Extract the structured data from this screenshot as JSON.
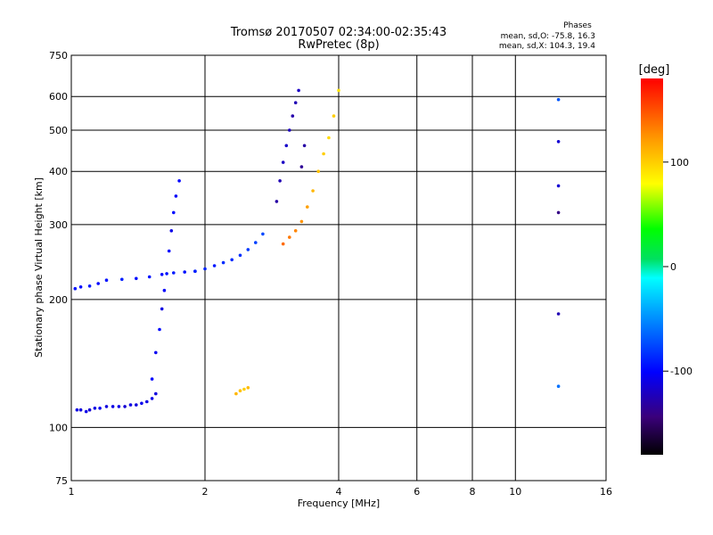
{
  "chart_data": {
    "type": "scatter",
    "title": "Tromsø 20170507 02:34:00-02:35:43",
    "subtitle": "RwPretec (8p)",
    "xlabel": "Frequency [MHz]",
    "ylabel": "Stationary phase Virtual Height [km]",
    "x_scale": "log",
    "y_scale": "log",
    "xlim": [
      1,
      16
    ],
    "ylim": [
      75,
      750
    ],
    "x_ticks": [
      1,
      2,
      4,
      6,
      8,
      10,
      16
    ],
    "x_tick_labels": [
      "1",
      "2",
      "4",
      "6",
      "8",
      "10",
      "16"
    ],
    "y_ticks": [
      75,
      100,
      200,
      300,
      400,
      500,
      600,
      750
    ],
    "y_tick_labels": [
      "75",
      "100",
      "200",
      "300",
      "400",
      "500",
      "600",
      "750"
    ],
    "grid": true,
    "phase_header": "Phases",
    "phase_stats": [
      "mean, sd,O: -75.8, 16.3",
      "mean, sd,X: 104.3, 19.4"
    ],
    "colorbar": {
      "title": "[deg]",
      "range": [
        -180,
        180
      ],
      "ticks": [
        100,
        0,
        -100
      ],
      "tick_labels": [
        "100",
        "0",
        "-100"
      ]
    },
    "series": [
      {
        "x": [
          1.03,
          1.05,
          1.08,
          1.1,
          1.13,
          1.16,
          1.2,
          1.24,
          1.28,
          1.32,
          1.36,
          1.4,
          1.44,
          1.48,
          1.52,
          1.55
        ],
        "y": [
          110,
          110,
          109,
          110,
          111,
          111,
          112,
          112,
          112,
          112,
          113,
          113,
          114,
          115,
          117,
          120
        ],
        "phase": [
          -110,
          -112,
          -108,
          -115,
          -110,
          -105,
          -112,
          -110,
          -108,
          -115,
          -110,
          -112,
          -106,
          -110,
          -108,
          -112
        ]
      },
      {
        "x": [
          1.02,
          1.05,
          1.1,
          1.15,
          1.2,
          1.3,
          1.4,
          1.5,
          1.6,
          1.7,
          1.8,
          1.9
        ],
        "y": [
          212,
          214,
          215,
          218,
          222,
          223,
          224,
          226,
          229,
          231,
          232,
          233
        ],
        "phase": [
          -95,
          -98,
          -92,
          -100,
          -95,
          -90,
          -96,
          -94,
          -98,
          -92,
          -95,
          -90
        ]
      },
      {
        "x": [
          1.52,
          1.55,
          1.58,
          1.6,
          1.62,
          1.64,
          1.66,
          1.68,
          1.7,
          1.72,
          1.75
        ],
        "y": [
          130,
          150,
          170,
          190,
          210,
          230,
          260,
          290,
          320,
          350,
          380
        ],
        "phase": [
          -100,
          -105,
          -98,
          -110,
          -102,
          -95,
          -100,
          -108,
          -97,
          -103,
          -100
        ]
      },
      {
        "x": [
          1.9,
          2.0,
          2.1,
          2.2,
          2.3,
          2.4,
          2.5,
          2.6,
          2.7
        ],
        "y": [
          233,
          236,
          240,
          244,
          248,
          254,
          262,
          272,
          285
        ],
        "phase": [
          -90,
          -88,
          -92,
          -85,
          -86,
          -84,
          -80,
          -78,
          -75
        ]
      },
      {
        "x": [
          2.9,
          2.95,
          3.0,
          3.05,
          3.1,
          3.15,
          3.2,
          3.25,
          3.3,
          3.35
        ],
        "y": [
          340,
          380,
          420,
          460,
          500,
          540,
          580,
          620,
          410,
          460
        ],
        "phase": [
          -130,
          -125,
          -120,
          -118,
          -122,
          -128,
          -125,
          -120,
          -135,
          -130
        ]
      },
      {
        "x": [
          3.0,
          3.1,
          3.2,
          3.3,
          3.4,
          3.5,
          3.6,
          3.7,
          3.8,
          3.9,
          4.0
        ],
        "y": [
          270,
          280,
          290,
          305,
          330,
          360,
          400,
          440,
          480,
          540,
          620
        ],
        "phase": [
          140,
          135,
          130,
          125,
          120,
          110,
          105,
          100,
          95,
          100,
          90
        ]
      },
      {
        "x": [
          2.35,
          2.4,
          2.45,
          2.5
        ],
        "y": [
          120,
          122,
          123,
          124
        ],
        "phase": [
          110,
          105,
          100,
          108
        ]
      },
      {
        "x": [
          12.5,
          12.5,
          12.5,
          12.5,
          12.5,
          12.5
        ],
        "y": [
          590,
          470,
          370,
          320,
          185,
          125
        ],
        "phase": [
          -70,
          -115,
          -115,
          -140,
          -125,
          -60
        ]
      }
    ]
  }
}
